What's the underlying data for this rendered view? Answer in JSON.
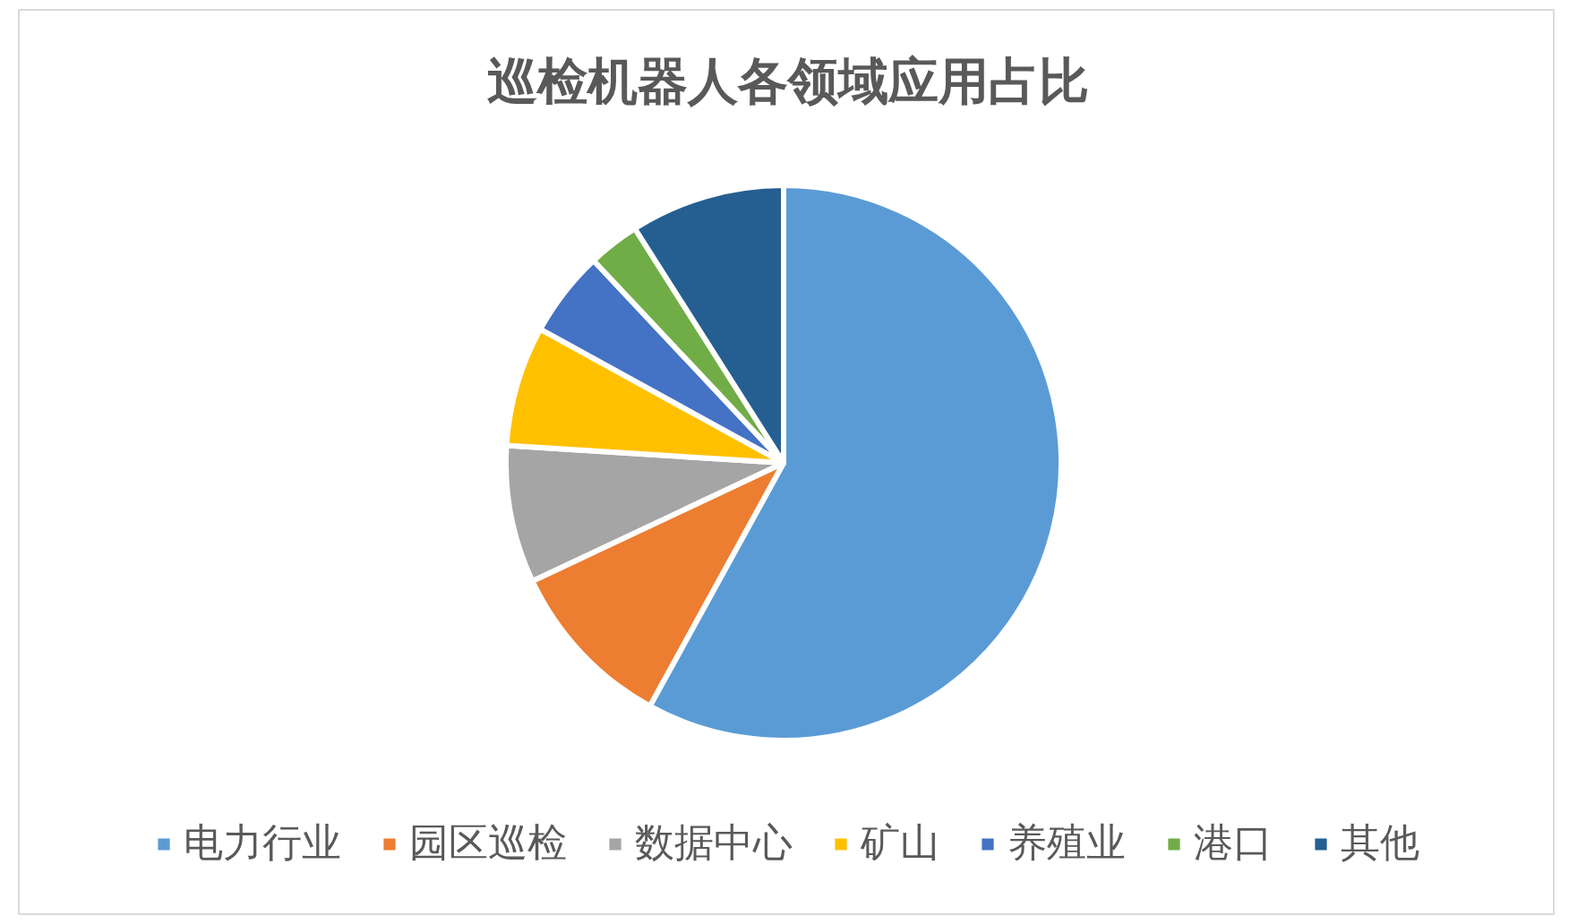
{
  "chart_data": {
    "type": "pie",
    "title": "巡检机器人各领域应用占比",
    "categories": [
      "电力行业",
      "园区巡检",
      "数据中心",
      "矿山",
      "养殖业",
      "港口",
      "其他"
    ],
    "values": [
      58,
      10,
      8,
      7,
      5,
      3,
      9
    ],
    "colors": [
      "#5b9bd5",
      "#ed7d31",
      "#a5a5a5",
      "#ffc000",
      "#4472c4",
      "#70ad47",
      "#255e91"
    ],
    "legend": "bottom"
  }
}
